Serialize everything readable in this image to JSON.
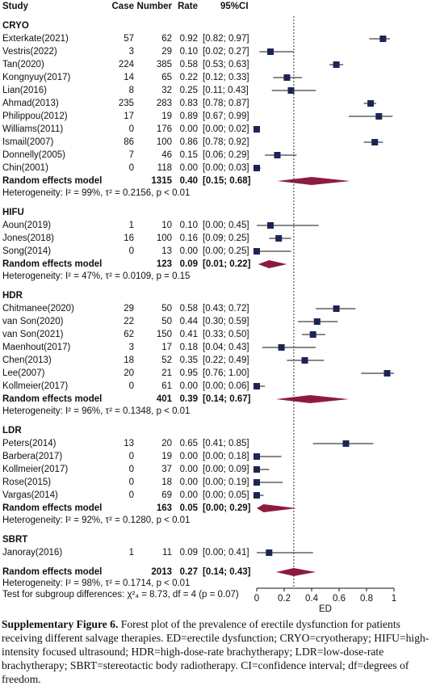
{
  "chart_data": {
    "type": "forest",
    "columns": [
      "Study",
      "Case",
      "Number",
      "Rate",
      "95%CI"
    ],
    "groups": [
      {
        "name": "CRYO",
        "studies": [
          {
            "study": "Exterkate(2021)",
            "case": 57,
            "number": 62,
            "rate": 0.92,
            "rate_label": "0.92",
            "ci": [
              0.82,
              0.97
            ],
            "ci_label": "[0.82; 0.97]"
          },
          {
            "study": "Vestris(2022)",
            "case": 3,
            "number": 29,
            "rate": 0.1,
            "rate_label": "0.10",
            "ci": [
              0.02,
              0.27
            ],
            "ci_label": "[0.02; 0.27]"
          },
          {
            "study": "Tan(2020)",
            "case": 224,
            "number": 385,
            "rate": 0.58,
            "rate_label": "0.58",
            "ci": [
              0.53,
              0.63
            ],
            "ci_label": "[0.53; 0.63]"
          },
          {
            "study": "Kongnyuy(2017)",
            "case": 14,
            "number": 65,
            "rate": 0.22,
            "rate_label": "0.22",
            "ci": [
              0.12,
              0.33
            ],
            "ci_label": "[0.12; 0.33]"
          },
          {
            "study": "Lian(2016)",
            "case": 8,
            "number": 32,
            "rate": 0.25,
            "rate_label": "0.25",
            "ci": [
              0.11,
              0.43
            ],
            "ci_label": "[0.11; 0.43]"
          },
          {
            "study": "Ahmad(2013)",
            "case": 235,
            "number": 283,
            "rate": 0.83,
            "rate_label": "0.83",
            "ci": [
              0.78,
              0.87
            ],
            "ci_label": "[0.78; 0.87]"
          },
          {
            "study": "Philippou(2012)",
            "case": 17,
            "number": 19,
            "rate": 0.89,
            "rate_label": "0.89",
            "ci": [
              0.67,
              0.99
            ],
            "ci_label": "[0.67; 0.99]"
          },
          {
            "study": "Williams(2011)",
            "case": 0,
            "number": 176,
            "rate": 0,
            "rate_label": "0.00",
            "ci": [
              0,
              0.02
            ],
            "ci_label": "[0.00; 0.02]"
          },
          {
            "study": "Ismail(2007)",
            "case": 86,
            "number": 100,
            "rate": 0.86,
            "rate_label": "0.86",
            "ci": [
              0.78,
              0.92
            ],
            "ci_label": "[0.78; 0.92]"
          },
          {
            "study": "Donnelly(2005)",
            "case": 7,
            "number": 46,
            "rate": 0.15,
            "rate_label": "0.15",
            "ci": [
              0.06,
              0.29
            ],
            "ci_label": "[0.06; 0.29]"
          },
          {
            "study": "Chin(2001)",
            "case": 0,
            "number": 118,
            "rate": 0,
            "rate_label": "0.00",
            "ci": [
              0,
              0.03
            ],
            "ci_label": "[0.00; 0.03]"
          }
        ],
        "pooled": {
          "label": "Random effects model",
          "number": 1315,
          "rate": 0.4,
          "rate_label": "0.40",
          "ci": [
            0.15,
            0.68
          ],
          "ci_label": "[0.15; 0.68]"
        },
        "heterogeneity": "Heterogeneity: I² = 99%, τ² = 0.2156, p < 0.01"
      },
      {
        "name": "HIFU",
        "studies": [
          {
            "study": "Aoun(2019)",
            "case": 1,
            "number": 10,
            "rate": 0.1,
            "rate_label": "0.10",
            "ci": [
              0,
              0.45
            ],
            "ci_label": "[0.00; 0.45]"
          },
          {
            "study": "Jones(2018)",
            "case": 16,
            "number": 100,
            "rate": 0.16,
            "rate_label": "0.16",
            "ci": [
              0.09,
              0.25
            ],
            "ci_label": "[0.09; 0.25]"
          },
          {
            "study": "Song(2014)",
            "case": 0,
            "number": 13,
            "rate": 0,
            "rate_label": "0.00",
            "ci": [
              0,
              0.25
            ],
            "ci_label": "[0.00; 0.25]"
          }
        ],
        "pooled": {
          "label": "Random effects model",
          "number": 123,
          "rate": 0.09,
          "rate_label": "0.09",
          "ci": [
            0.01,
            0.22
          ],
          "ci_label": "[0.01; 0.22]"
        },
        "heterogeneity": "Heterogeneity: I² = 47%, τ² = 0.0109, p = 0.15"
      },
      {
        "name": "HDR",
        "studies": [
          {
            "study": "Chitmanee(2020)",
            "case": 29,
            "number": 50,
            "rate": 0.58,
            "rate_label": "0.58",
            "ci": [
              0.43,
              0.72
            ],
            "ci_label": "[0.43; 0.72]"
          },
          {
            "study": "van Son(2020)",
            "case": 22,
            "number": 50,
            "rate": 0.44,
            "rate_label": "0.44",
            "ci": [
              0.3,
              0.59
            ],
            "ci_label": "[0.30; 0.59]"
          },
          {
            "study": "van Son(2021)",
            "case": 62,
            "number": 150,
            "rate": 0.41,
            "rate_label": "0.41",
            "ci": [
              0.33,
              0.5
            ],
            "ci_label": "[0.33; 0.50]"
          },
          {
            "study": "Maenhout(2017)",
            "case": 3,
            "number": 17,
            "rate": 0.18,
            "rate_label": "0.18",
            "ci": [
              0.04,
              0.43
            ],
            "ci_label": "[0.04; 0.43]"
          },
          {
            "study": "Chen(2013)",
            "case": 18,
            "number": 52,
            "rate": 0.35,
            "rate_label": "0.35",
            "ci": [
              0.22,
              0.49
            ],
            "ci_label": "[0.22; 0.49]"
          },
          {
            "study": "Lee(2007)",
            "case": 20,
            "number": 21,
            "rate": 0.95,
            "rate_label": "0.95",
            "ci": [
              0.76,
              1
            ],
            "ci_label": "[0.76; 1.00]"
          },
          {
            "study": "Kollmeier(2017)",
            "case": 0,
            "number": 61,
            "rate": 0,
            "rate_label": "0.00",
            "ci": [
              0,
              0.06
            ],
            "ci_label": "[0.00; 0.06]"
          }
        ],
        "pooled": {
          "label": "Random effects model",
          "number": 401,
          "rate": 0.39,
          "rate_label": "0.39",
          "ci": [
            0.14,
            0.67
          ],
          "ci_label": "[0.14; 0.67]"
        },
        "heterogeneity": "Heterogeneity: I² = 96%, τ² = 0.1348, p < 0.01"
      },
      {
        "name": "LDR",
        "studies": [
          {
            "study": "Peters(2014)",
            "case": 13,
            "number": 20,
            "rate": 0.65,
            "rate_label": "0.65",
            "ci": [
              0.41,
              0.85
            ],
            "ci_label": "[0.41; 0.85]"
          },
          {
            "study": "Barbera(2017)",
            "case": 0,
            "number": 19,
            "rate": 0,
            "rate_label": "0.00",
            "ci": [
              0,
              0.18
            ],
            "ci_label": "[0.00; 0.18]"
          },
          {
            "study": "Kollmeier(2017)",
            "case": 0,
            "number": 37,
            "rate": 0,
            "rate_label": "0.00",
            "ci": [
              0,
              0.09
            ],
            "ci_label": "[0.00; 0.09]"
          },
          {
            "study": "Rose(2015)",
            "case": 0,
            "number": 18,
            "rate": 0,
            "rate_label": "0.00",
            "ci": [
              0,
              0.19
            ],
            "ci_label": "[0.00; 0.19]"
          },
          {
            "study": "Vargas(2014)",
            "case": 0,
            "number": 69,
            "rate": 0,
            "rate_label": "0.00",
            "ci": [
              0,
              0.05
            ],
            "ci_label": "[0.00; 0.05]"
          }
        ],
        "pooled": {
          "label": "Random effects model",
          "number": 163,
          "rate": 0.05,
          "rate_label": "0.05",
          "ci": [
            0,
            0.29
          ],
          "ci_label": "[0.00; 0.29]"
        },
        "heterogeneity": "Heterogeneity: I² = 92%, τ² = 0.1280, p < 0.01"
      },
      {
        "name": "SBRT",
        "studies": [
          {
            "study": "Janoray(2016)",
            "case": 1,
            "number": 11,
            "rate": 0.09,
            "rate_label": "0.09",
            "ci": [
              0,
              0.41
            ],
            "ci_label": "[0.00; 0.41]"
          }
        ]
      }
    ],
    "overall": {
      "label": "Random effects model",
      "number": 2013,
      "rate": 0.27,
      "rate_label": "0.27",
      "ci": [
        0.14,
        0.43
      ],
      "ci_label": "[0.14; 0.43]",
      "heterogeneity": "Heterogeneity: I² = 98%, τ² = 0.1714, p < 0.01",
      "subgroup_test": "Test for subgroup differences: χ²₄ = 8.73, df = 4 (p = 0.07)"
    },
    "xlim": [
      0,
      1
    ],
    "xticks": [
      0,
      0.2,
      0.4,
      0.6,
      0.8,
      1
    ],
    "xlabel": "ED",
    "reference_line": true,
    "group_title_color": "#c0272d",
    "square_color": "#1c2554",
    "diamond_color": "#8e1b3e",
    "pooled_label_color": "#6f8296"
  },
  "caption": {
    "label": "Supplementary Figure 6.",
    "text": "Forest plot of the prevalence of erectile dysfunction for patients receiving different salvage therapies. ED=erectile dysfunction; CRYO=cryotherapy; HIFU=high-intensity focused ultrasound; HDR=high-dose-rate brachytherapy; LDR=low-dose-rate brachytherapy; SBRT=stereotactic body radiotherapy. CI=confidence interval; df=degrees of freedom."
  }
}
